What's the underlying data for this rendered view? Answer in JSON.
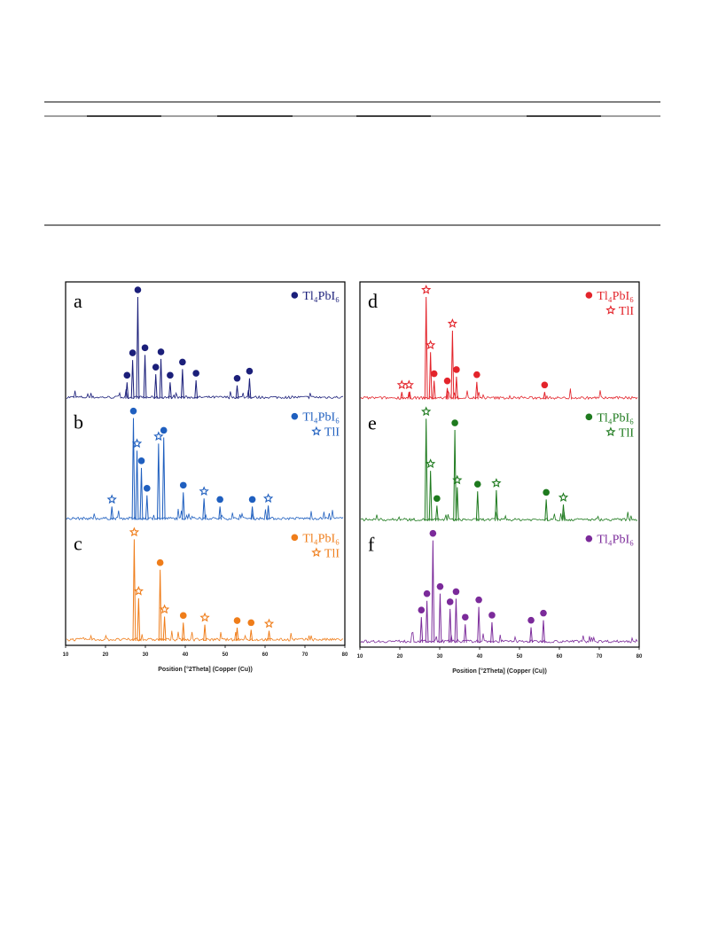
{
  "chart_data": [
    {
      "type": "xrd",
      "xlabel": "Position [°2Theta] (Copper (Cu))",
      "xlim": [
        10,
        80
      ],
      "xticks": [
        10,
        20,
        30,
        40,
        50,
        60,
        70,
        80
      ],
      "panels": [
        {
          "label": "a",
          "color": "#1b1f7a",
          "series": [
            {
              "name": "Tl₄PbI₆",
              "marker": "dot",
              "x": [
                25.4,
                26.8,
                28.1,
                29.9,
                32.6,
                33.9,
                36.2,
                39.3,
                42.7,
                53.0,
                56.1
              ],
              "values": [
                16,
                38,
                100,
                43,
                24,
                39,
                16,
                29,
                18,
                13,
                20
              ]
            }
          ]
        },
        {
          "label": "b",
          "color": "#1f5fbf",
          "series": [
            {
              "name": "Tl₄PbI₆",
              "marker": "dot",
              "x": [
                27.0,
                29.0,
                30.4,
                34.6,
                39.5,
                48.7,
                56.8
              ],
              "values": [
                100,
                51,
                24,
                81,
                27,
                13,
                13
              ]
            },
            {
              "name": "TlI",
              "marker": "star",
              "x": [
                21.6,
                27.9,
                33.3,
                44.7,
                60.8
              ],
              "values": [
                13,
                68,
                75,
                21,
                14
              ]
            }
          ]
        },
        {
          "label": "c",
          "color": "#ef7d1a",
          "series": [
            {
              "name": "Tl₄PbI₆",
              "marker": "dot",
              "x": [
                33.7,
                39.5,
                53.0,
                56.5
              ],
              "values": [
                70,
                18,
                13,
                11
              ]
            },
            {
              "name": "TlI",
              "marker": "star",
              "x": [
                27.2,
                28.3,
                34.8,
                44.9,
                61.0
              ],
              "values": [
                100,
                42,
                24,
                16,
                10
              ]
            }
          ]
        }
      ]
    },
    {
      "type": "xrd",
      "xlabel": "Position [°2Theta] (Copper (Cu))",
      "xlim": [
        10,
        80
      ],
      "xticks": [
        10,
        20,
        30,
        40,
        50,
        60,
        70,
        80
      ],
      "panels": [
        {
          "label": "d",
          "color": "#e3242b",
          "series": [
            {
              "name": "Tl₄PbI₆",
              "marker": "dot",
              "x": [
                28.6,
                31.9,
                34.2,
                39.3,
                56.3
              ],
              "values": [
                18,
                11,
                22,
                17,
                7
              ]
            },
            {
              "name": "TlI",
              "marker": "star",
              "x": [
                20.5,
                22.3,
                26.6,
                27.7,
                33.2
              ],
              "values": [
                7,
                7,
                100,
                46,
                67
              ]
            }
          ]
        },
        {
          "label": "e",
          "color": "#1e7a1e",
          "series": [
            {
              "name": "Tl₄PbI₆",
              "marker": "dot",
              "x": [
                29.3,
                33.8,
                39.5,
                56.7
              ],
              "values": [
                15,
                89,
                29,
                21
              ]
            },
            {
              "name": "TlI",
              "marker": "star",
              "x": [
                26.6,
                27.7,
                34.4,
                44.2,
                61.0
              ],
              "values": [
                100,
                49,
                33,
                30,
                16
              ]
            }
          ]
        },
        {
          "label": "f",
          "color": "#7b2a9a",
          "series": [
            {
              "name": "Tl₄PbI₆",
              "marker": "dot",
              "x": [
                25.4,
                26.8,
                28.3,
                30.1,
                32.6,
                34.1,
                36.4,
                39.8,
                43.1,
                52.9,
                56.0
              ],
              "values": [
                25,
                41,
                100,
                48,
                33,
                43,
                18,
                35,
                20,
                15,
                22
              ]
            }
          ]
        }
      ]
    }
  ]
}
